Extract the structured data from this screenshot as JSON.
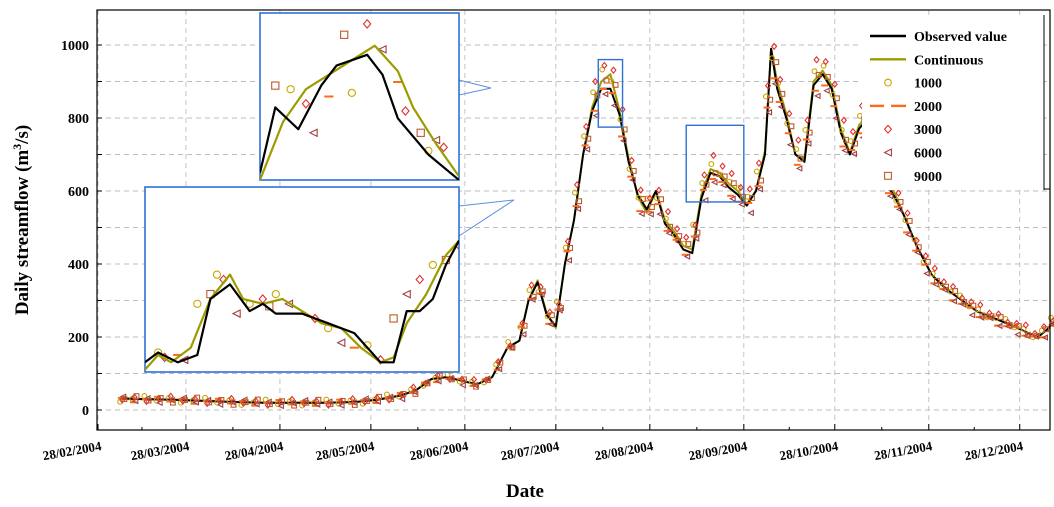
{
  "chart_data": {
    "type": "line",
    "xlabel": "Date",
    "ylabel_main": "Daily streamflow (m",
    "ylabel_sup": "3",
    "ylabel_end": "/s)",
    "ylim": [
      -60,
      1100
    ],
    "yticks": [
      0,
      200,
      400,
      600,
      800,
      1000
    ],
    "xlim_day": [
      0,
      330
    ],
    "xticks": [
      {
        "day": 0,
        "label": "28/02/2004"
      },
      {
        "day": 29,
        "label": "28/03/2004"
      },
      {
        "day": 60,
        "label": "28/04/2004"
      },
      {
        "day": 90,
        "label": "28/05/2004"
      },
      {
        "day": 121,
        "label": "28/06/2004"
      },
      {
        "day": 151,
        "label": "28/07/2004"
      },
      {
        "day": 182,
        "label": "28/08/2004"
      },
      {
        "day": 213,
        "label": "28/09/2004"
      },
      {
        "day": 243,
        "label": "28/10/2004"
      },
      {
        "day": 274,
        "label": "28/11/2004"
      },
      {
        "day": 304,
        "label": "28/12/2004"
      }
    ],
    "grid": true,
    "legend_position": "top-right",
    "observed": {
      "name": "Observed value",
      "color": "#000000",
      "points": [
        [
          8,
          32
        ],
        [
          15,
          30
        ],
        [
          25,
          28
        ],
        [
          35,
          25
        ],
        [
          45,
          22
        ],
        [
          55,
          20
        ],
        [
          65,
          20
        ],
        [
          75,
          20
        ],
        [
          85,
          22
        ],
        [
          92,
          28
        ],
        [
          100,
          40
        ],
        [
          105,
          55
        ],
        [
          110,
          85
        ],
        [
          115,
          90
        ],
        [
          120,
          80
        ],
        [
          125,
          70
        ],
        [
          130,
          90
        ],
        [
          135,
          170
        ],
        [
          139,
          190
        ],
        [
          142,
          300
        ],
        [
          145,
          350
        ],
        [
          148,
          260
        ],
        [
          151,
          230
        ],
        [
          154,
          400
        ],
        [
          157,
          520
        ],
        [
          160,
          700
        ],
        [
          163,
          820
        ],
        [
          166,
          880
        ],
        [
          169,
          880
        ],
        [
          172,
          810
        ],
        [
          175,
          680
        ],
        [
          178,
          590
        ],
        [
          181,
          550
        ],
        [
          184,
          600
        ],
        [
          187,
          510
        ],
        [
          190,
          480
        ],
        [
          193,
          440
        ],
        [
          196,
          430
        ],
        [
          199,
          580
        ],
        [
          202,
          650
        ],
        [
          205,
          640
        ],
        [
          208,
          610
        ],
        [
          211,
          590
        ],
        [
          214,
          560
        ],
        [
          217,
          600
        ],
        [
          220,
          700
        ],
        [
          222,
          990
        ],
        [
          224,
          880
        ],
        [
          227,
          800
        ],
        [
          230,
          700
        ],
        [
          233,
          680
        ],
        [
          236,
          890
        ],
        [
          239,
          920
        ],
        [
          242,
          880
        ],
        [
          245,
          760
        ],
        [
          248,
          700
        ],
        [
          251,
          770
        ],
        [
          254,
          800
        ],
        [
          257,
          710
        ],
        [
          260,
          620
        ],
        [
          263,
          580
        ],
        [
          266,
          530
        ],
        [
          270,
          450
        ],
        [
          275,
          370
        ],
        [
          280,
          330
        ],
        [
          285,
          300
        ],
        [
          290,
          270
        ],
        [
          296,
          250
        ],
        [
          302,
          230
        ],
        [
          307,
          210
        ],
        [
          310,
          200
        ],
        [
          313,
          220
        ],
        [
          316,
          248
        ],
        [
          319,
          225
        ],
        [
          322,
          195
        ],
        [
          325,
          170
        ],
        [
          330,
          150
        ],
        [
          335,
          120
        ],
        [
          340,
          110
        ],
        [
          345,
          100
        ],
        [
          350,
          92
        ],
        [
          355,
          85
        ],
        [
          360,
          80
        ],
        [
          365,
          75
        ],
        [
          370,
          72
        ]
      ]
    },
    "continuous": {
      "name": "Continuous",
      "color": "#9c9c00",
      "points": [
        [
          8,
          30
        ],
        [
          15,
          30
        ],
        [
          25,
          28
        ],
        [
          35,
          25
        ],
        [
          45,
          22
        ],
        [
          55,
          20
        ],
        [
          65,
          20
        ],
        [
          75,
          20
        ],
        [
          85,
          22
        ],
        [
          92,
          28
        ],
        [
          100,
          40
        ],
        [
          105,
          55
        ],
        [
          110,
          85
        ],
        [
          115,
          90
        ],
        [
          120,
          80
        ],
        [
          125,
          70
        ],
        [
          130,
          90
        ],
        [
          135,
          170
        ],
        [
          139,
          190
        ],
        [
          142,
          300
        ],
        [
          145,
          355
        ],
        [
          148,
          265
        ],
        [
          151,
          225
        ],
        [
          154,
          400
        ],
        [
          157,
          520
        ],
        [
          160,
          700
        ],
        [
          163,
          830
        ],
        [
          166,
          900
        ],
        [
          169,
          920
        ],
        [
          172,
          820
        ],
        [
          175,
          690
        ],
        [
          178,
          585
        ],
        [
          181,
          540
        ],
        [
          184,
          600
        ],
        [
          187,
          520
        ],
        [
          190,
          490
        ],
        [
          193,
          450
        ],
        [
          196,
          440
        ],
        [
          199,
          590
        ],
        [
          202,
          660
        ],
        [
          205,
          650
        ],
        [
          208,
          620
        ],
        [
          211,
          600
        ],
        [
          214,
          565
        ],
        [
          217,
          600
        ],
        [
          220,
          710
        ],
        [
          222,
          990
        ],
        [
          224,
          900
        ],
        [
          227,
          810
        ],
        [
          230,
          700
        ],
        [
          233,
          690
        ],
        [
          236,
          900
        ],
        [
          239,
          930
        ],
        [
          242,
          890
        ],
        [
          245,
          770
        ],
        [
          248,
          705
        ],
        [
          251,
          780
        ],
        [
          254,
          810
        ],
        [
          257,
          720
        ],
        [
          260,
          630
        ],
        [
          263,
          590
        ],
        [
          266,
          530
        ],
        [
          270,
          450
        ],
        [
          275,
          370
        ],
        [
          280,
          330
        ],
        [
          285,
          300
        ],
        [
          290,
          270
        ],
        [
          296,
          250
        ],
        [
          302,
          230
        ],
        [
          307,
          210
        ],
        [
          310,
          200
        ],
        [
          313,
          220
        ],
        [
          316,
          250
        ],
        [
          319,
          225
        ],
        [
          322,
          195
        ],
        [
          325,
          170
        ],
        [
          330,
          150
        ],
        [
          335,
          120
        ],
        [
          340,
          110
        ],
        [
          345,
          100
        ],
        [
          350,
          92
        ],
        [
          355,
          85
        ],
        [
          360,
          80
        ],
        [
          365,
          75
        ],
        [
          370,
          70
        ]
      ]
    },
    "scenarios": [
      {
        "name": "1000",
        "color": "#c8a800",
        "marker": "circle"
      },
      {
        "name": "2000",
        "color": "#ff6a1a",
        "marker": "dash"
      },
      {
        "name": "3000",
        "color": "#e03030",
        "marker": "diamond"
      },
      {
        "name": "6000",
        "color": "#a04040",
        "marker": "triangle-left"
      },
      {
        "name": "9000",
        "color": "#c05a28",
        "marker": "square"
      }
    ],
    "marker_days": [
      8,
      12,
      16,
      20,
      24,
      28,
      32,
      36,
      40,
      44,
      48,
      52,
      56,
      60,
      64,
      68,
      72,
      76,
      80,
      84,
      88,
      92,
      96,
      100,
      104,
      108,
      112,
      116,
      120,
      124,
      128,
      132,
      136,
      140,
      143,
      146,
      149,
      152,
      155,
      158,
      161,
      164,
      167,
      170,
      173,
      176,
      179,
      182,
      185,
      188,
      191,
      194,
      197,
      200,
      203,
      206,
      209,
      212,
      215,
      218,
      221,
      223,
      225,
      228,
      231,
      234,
      237,
      240,
      243,
      246,
      249,
      252,
      255,
      258,
      261,
      264,
      267,
      270,
      273,
      276,
      279,
      282,
      285,
      288,
      291,
      294,
      297,
      300,
      303,
      306,
      309,
      312,
      315,
      318,
      321,
      324,
      327,
      330,
      334,
      338,
      342,
      346,
      350,
      354,
      358,
      362,
      366,
      370
    ],
    "zoom_boxes": [
      {
        "day0": 165,
        "day1": 173,
        "y0": 775,
        "y1": 960
      },
      {
        "day0": 194,
        "day1": 213,
        "y0": 570,
        "y1": 780
      }
    ],
    "inset_upper": {
      "xrange": [
        163,
        176
      ],
      "yrange": [
        630,
        1090
      ],
      "observed": [
        [
          163,
          650
        ],
        [
          164,
          830
        ],
        [
          165.5,
          770
        ],
        [
          167,
          890
        ],
        [
          168,
          945
        ],
        [
          170,
          975
        ],
        [
          171,
          920
        ],
        [
          172,
          800
        ],
        [
          174,
          700
        ],
        [
          176,
          630
        ]
      ],
      "continuous": [
        [
          163,
          630
        ],
        [
          164.5,
          790
        ],
        [
          166,
          880
        ],
        [
          167.5,
          920
        ],
        [
          169,
          960
        ],
        [
          170.5,
          1000
        ],
        [
          172,
          930
        ],
        [
          173,
          830
        ],
        [
          174.5,
          730
        ],
        [
          176,
          640
        ]
      ],
      "markers": [
        [
          164,
          890,
          4
        ],
        [
          165,
          880,
          0
        ],
        [
          166,
          840,
          2
        ],
        [
          166.5,
          760,
          3
        ],
        [
          167.5,
          860,
          1
        ],
        [
          168.5,
          1030,
          4
        ],
        [
          169,
          870,
          0
        ],
        [
          170,
          1060,
          2
        ],
        [
          171,
          990,
          3
        ],
        [
          172,
          900,
          1
        ],
        [
          172.5,
          820,
          2
        ],
        [
          173.5,
          760,
          4
        ],
        [
          174,
          710,
          0
        ],
        [
          174.5,
          740,
          3
        ],
        [
          175,
          720,
          2
        ]
      ]
    },
    "inset_lower": {
      "xrange": [
        192,
        216
      ],
      "yrange": [
        420,
        800
      ],
      "observed": [
        [
          192,
          440
        ],
        [
          193,
          460
        ],
        [
          194.5,
          440
        ],
        [
          196,
          455
        ],
        [
          197,
          570
        ],
        [
          198.5,
          600
        ],
        [
          200,
          545
        ],
        [
          201,
          560
        ],
        [
          202,
          540
        ],
        [
          204,
          540
        ],
        [
          206,
          520
        ],
        [
          208,
          500
        ],
        [
          210,
          440
        ],
        [
          211,
          440
        ],
        [
          212,
          545
        ],
        [
          213,
          545
        ],
        [
          214,
          570
        ],
        [
          215,
          640
        ],
        [
          216,
          690
        ]
      ],
      "continuous": [
        [
          192,
          425
        ],
        [
          193,
          455
        ],
        [
          194,
          440
        ],
        [
          195.5,
          470
        ],
        [
          197,
          570
        ],
        [
          198.5,
          620
        ],
        [
          199.5,
          570
        ],
        [
          201,
          560
        ],
        [
          202.5,
          570
        ],
        [
          204,
          545
        ],
        [
          205.5,
          520
        ],
        [
          207,
          510
        ],
        [
          208.5,
          470
        ],
        [
          210,
          440
        ],
        [
          211,
          450
        ],
        [
          212,
          520
        ],
        [
          213.5,
          580
        ],
        [
          215,
          660
        ],
        [
          216,
          690
        ]
      ],
      "markers": [
        [
          193,
          460,
          0
        ],
        [
          193.5,
          450,
          2
        ],
        [
          194.5,
          455,
          1
        ],
        [
          195,
          445,
          3
        ],
        [
          196,
          560,
          0
        ],
        [
          197,
          580,
          4
        ],
        [
          197.5,
          620,
          0
        ],
        [
          198,
          610,
          2
        ],
        [
          199,
          540,
          3
        ],
        [
          200,
          560,
          0
        ],
        [
          201,
          570,
          2
        ],
        [
          201.5,
          555,
          4
        ],
        [
          202,
          580,
          0
        ],
        [
          203,
          560,
          3
        ],
        [
          204,
          540,
          1
        ],
        [
          205,
          530,
          2
        ],
        [
          206,
          510,
          0
        ],
        [
          207,
          480,
          3
        ],
        [
          208,
          470,
          1
        ],
        [
          209,
          475,
          0
        ],
        [
          210,
          445,
          2
        ],
        [
          211,
          530,
          4
        ],
        [
          212,
          580,
          3
        ],
        [
          213,
          610,
          2
        ],
        [
          214,
          640,
          0
        ],
        [
          215,
          650,
          4
        ],
        [
          216,
          680,
          2
        ]
      ]
    }
  }
}
